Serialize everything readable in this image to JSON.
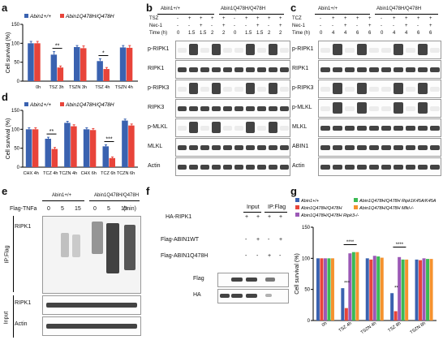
{
  "labels": {
    "a": "a",
    "b": "b",
    "c": "c",
    "d": "d",
    "e": "e",
    "f": "f",
    "g": "g"
  },
  "genotypes": {
    "wt": "Abin1+/+",
    "mut": "Abin1Q478H/Q478H"
  },
  "panel_a": {
    "chart_data": {
      "type": "bar",
      "ylabel": "Cell survival (%)",
      "ylim": [
        0,
        150
      ],
      "yticks": [
        0,
        50,
        100,
        150
      ],
      "categories": [
        "0h",
        "TSZ 3h",
        "TSZN 3h",
        "TSZ 4h",
        "TSZN 4h"
      ],
      "series": [
        {
          "name": "Abin1+/+",
          "color": "#3a62b0",
          "values": [
            100,
            70,
            90,
            53,
            89
          ],
          "errors": [
            5,
            8,
            4,
            6,
            5
          ]
        },
        {
          "name": "Abin1Q478H/Q478H",
          "color": "#e8443a",
          "values": [
            100,
            36,
            87,
            32,
            88
          ],
          "errors": [
            5,
            4,
            6,
            4,
            6
          ]
        }
      ],
      "annotations": [
        {
          "text": "**",
          "category": "TSZ 3h"
        },
        {
          "text": "*",
          "category": "TSZ 4h"
        }
      ]
    }
  },
  "panel_d": {
    "chart_data": {
      "type": "bar",
      "ylabel": "Cell survival (%)",
      "ylim": [
        0,
        150
      ],
      "yticks": [
        0,
        50,
        100,
        150
      ],
      "categories": [
        "CHX 4h",
        "TCZ 4h",
        "TCZN 4h",
        "CHX 6h",
        "TCZ 6h",
        "TCZN 6h"
      ],
      "series": [
        {
          "name": "Abin1+/+",
          "color": "#3a62b0",
          "values": [
            100,
            75,
            117,
            100,
            55,
            123
          ],
          "errors": [
            4,
            4,
            4,
            4,
            4,
            4
          ]
        },
        {
          "name": "Abin1Q478H/Q478H",
          "color": "#e8443a",
          "values": [
            100,
            48,
            108,
            98,
            24,
            110
          ],
          "errors": [
            4,
            4,
            4,
            4,
            3,
            4
          ]
        }
      ],
      "annotations": [
        {
          "text": "**",
          "category": "TCZ 4h"
        },
        {
          "text": "***",
          "category": "TCZ 6h"
        }
      ]
    }
  },
  "panel_g": {
    "chart_data": {
      "type": "bar",
      "ylabel": "Cell survival (%)",
      "ylim": [
        0,
        150
      ],
      "yticks": [
        0,
        50,
        100,
        150
      ],
      "categories": [
        "0h",
        "TSZ 4h",
        "TSZN 4h",
        "TSZ 8h",
        "TSZN 8h"
      ],
      "series": [
        {
          "name": "Abin1+/+",
          "color": "#3a62b0",
          "values": [
            100,
            52,
            100,
            44,
            98
          ]
        },
        {
          "name": "Abin1Q478H/Q478H",
          "color": "#e8443a",
          "values": [
            100,
            20,
            98,
            15,
            97
          ]
        },
        {
          "name": "Abin1Q478H/Q478H Ripk3-/-",
          "color": "#9b59b6",
          "values": [
            100,
            108,
            104,
            102,
            100
          ]
        },
        {
          "name": "Abin1Q478H/Q478H Ripk1K45A/K45A",
          "color": "#3cba54",
          "values": [
            100,
            110,
            103,
            98,
            99
          ]
        },
        {
          "name": "Abin1Q478H/Q478H Mlkl-/-",
          "color": "#f5922e",
          "values": [
            100,
            110,
            101,
            98,
            99
          ]
        }
      ],
      "annotations": [
        "****",
        "***",
        "****",
        "**"
      ]
    }
  },
  "panel_b": {
    "rows": [
      "TSZ",
      "Nec-1",
      "Time (h)"
    ],
    "tsz": [
      "-",
      "+",
      "+",
      "+",
      "+",
      "-",
      "+",
      "+",
      "+",
      "+"
    ],
    "nec": [
      "-",
      "-",
      "+",
      "-",
      "+",
      "-",
      "-",
      "+",
      "-",
      "+"
    ],
    "time": [
      "0",
      "1.5",
      "1.5",
      "2",
      "2",
      "0",
      "1.5",
      "1.5",
      "2",
      "2"
    ],
    "blots": [
      "p-RIPK1",
      "RIPK1",
      "p-RIPK3",
      "RIPK3",
      "p-MLKL",
      "MLKL",
      "Actin"
    ]
  },
  "panel_c": {
    "rows": [
      "TCZ",
      "Nec-1",
      "Time (h)"
    ],
    "tcz": [
      "-",
      "+",
      "+",
      "+",
      "+",
      "-",
      "+",
      "+",
      "+",
      "+"
    ],
    "nec": [
      "-",
      "-",
      "+",
      "-",
      "+",
      "-",
      "-",
      "+",
      "-",
      "+"
    ],
    "time": [
      "0",
      "4",
      "4",
      "6",
      "6",
      "0",
      "4",
      "4",
      "6",
      "6"
    ],
    "blots": [
      "p-RIPK1",
      "RIPK1",
      "p-RIPK3",
      "p-MLKL",
      "MLKL",
      "ABIN1",
      "Actin"
    ]
  },
  "panel_e": {
    "flag_label": "Flag-TNFa",
    "times": [
      "0",
      "5",
      "15",
      "0",
      "5",
      "15"
    ],
    "unit": "(min)",
    "ip_label": "IP:Flag",
    "input_label": "Input",
    "blots_ip": [
      "RIPK1"
    ],
    "blots_input": [
      "RIPK1",
      "Actin"
    ]
  },
  "panel_f": {
    "headers": [
      "Input",
      "IP:Flag"
    ],
    "rows": [
      "HA-RIPK1",
      "Flag-ABIN1WT",
      "Flag-ABIN1Q478H"
    ],
    "signs": [
      [
        "+",
        "+",
        "+",
        "+"
      ],
      [
        "-",
        "+",
        "-",
        "+"
      ],
      [
        "-",
        "-",
        "+",
        "-"
      ]
    ],
    "blots": [
      "Flag",
      "HA"
    ]
  }
}
